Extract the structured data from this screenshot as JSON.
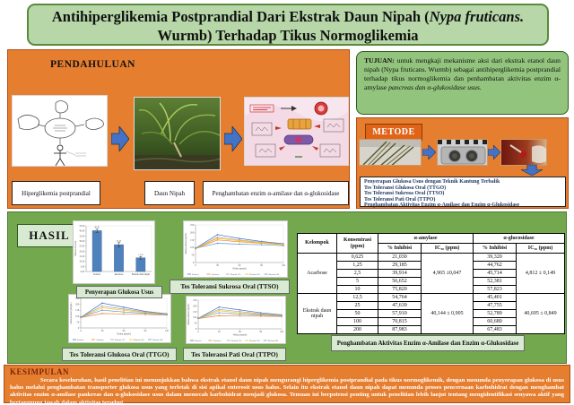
{
  "title": {
    "part1": "Antihiperglikemia Postprandial Dari Ekstrak Daun Nipah (",
    "italic": "Nypa fruticans.",
    "part2": " Wurmb) Terhadap Tikus Normoglikemia"
  },
  "pendahuluan": {
    "heading": "PENDAHULUAN",
    "labels": [
      "Hiperglikemia postprandial",
      "Daun Nipah",
      "Penghambatan enzim α-amilase dan α-glukosidase"
    ]
  },
  "tujuan": {
    "heading": "TUJUAN:",
    "body": " untuk mengkaji mekanisme aksi dari ekstrak etanol daun nipah (Nypa fruticans. Wurmb) sebagai antihiperglikemia postprandial terhadap tikus normoglikemia dan penhambatan aktivitas enzim α-amylase ",
    "body_italic": "pancreas dan α-glukosidase usus."
  },
  "metode": {
    "heading": "METODE",
    "items": [
      "Penyerapan Glukosa Usus dengan Teknik Kantung Terbalik",
      "Tes Toleransi Glukosa Oral (TTGO)",
      "Tes Toleransi Sukrosa Oral (TTSO)",
      "Tes Toleransi Pati Oral (TTPO)",
      "Penghambatan Aktivitas Enzim α-Amilase dan Enzim α-Glukosidase"
    ]
  },
  "hasil": {
    "heading": "HASIL",
    "captions": [
      "Penyerapan Glukosa Usus",
      "Tes Toleransi Sukrosa Oral (TTSO)",
      "Tes Toleransi Glukosa Oral (TTGO)",
      "Tes Toleransi Pati Oral (TTPO)",
      "Penghambatan Aktivitas Enzim α-Amilase dan Enzim α-Glukosidase"
    ]
  },
  "table": {
    "headers": {
      "kelompok": "Kelompok",
      "konsentrasi": "Konsentrasi (ppm)",
      "amylase": "α-amylase",
      "glucosidase": "α-glucosidase",
      "inhibisi": "% Inhibisi",
      "ic50": "IC₅₀ (ppm)",
      "inhibisi2": "% Inhibisi",
      "ic502": "IC₅₀ (ppm)"
    },
    "groups": [
      {
        "name": "Acarbose",
        "ic50_amylase": "4,965 ±0,047",
        "ic50_glucosidase": "4,812 ± 0,149",
        "rows": [
          [
            "0,625",
            "21,030",
            "39,320"
          ],
          [
            "1,25",
            "29,185",
            "44,762"
          ],
          [
            "2,5",
            "39,914",
            "45,714"
          ],
          [
            "5",
            "56,652",
            "52,381"
          ],
          [
            "10",
            "75,820",
            "57,823"
          ]
        ]
      },
      {
        "name": "Ekstrak daun nipah",
        "ic50_amylase": "40,144 ± 0,905",
        "ic50_glucosidase": "40,695 ± 0,849",
        "rows": [
          [
            "12,5",
            "54,764",
            "45,401"
          ],
          [
            "25",
            "47,639",
            "47,755"
          ],
          [
            "50",
            "57,910",
            "52,789"
          ],
          [
            "100",
            "70,815",
            "60,680"
          ],
          [
            "200",
            "87,983",
            "67,483"
          ]
        ]
      }
    ]
  },
  "kesimpulan": {
    "heading": "KESIMPULAN",
    "body": "Secara keseluruhan, hasil penelitian ini menunjukkan bahwa ekstrak etanol daun nipah mengurangi hiperglikemia postprandial pada tikus normoglikemik, dengan menunda penyerapan glukosa di usus halus melalui penghambatan transporter glukosa usus yang terletak di sisi apikal enterosit usus halus. Selain itu ekstrak etanol daun nipah dapat menunda proses pencernaan karbohidrat dengan menghambat aktivitas enzim α-amilase pankreas dan α-glukosidase usus dalam memecah karbohidrat menjadi glukosa. Temuan ini berpotensi penting untuk penelitian lebih lanjut tentang mengidentifikasi senyawa aktif yang bertanggung jawab dalam aktivitas tersebut."
  },
  "chart_data": [
    {
      "type": "bar",
      "title": "Penyerapan Glukosa Usus",
      "categories": [
        "Kontrol",
        "Akarbose",
        "Ekstrak daun nipah"
      ],
      "values": [
        40.2,
        26.4,
        13.5
      ],
      "errors": [
        1.6,
        2.0,
        1.3
      ],
      "xlabel": "",
      "ylabel": "Glukosa terserap",
      "ylim": [
        0,
        45
      ],
      "note": "values estimated from bar heights; tick text illegible at source resolution"
    },
    {
      "type": "line",
      "title": "Tes Toleransi Sukrosa Oral (TTSO)",
      "x": [
        0,
        30,
        60,
        90,
        120
      ],
      "xlabel": "Waktu (menit)",
      "ylabel": "Glukosa darah (mg/dL)",
      "ylim": [
        0,
        250
      ],
      "legend_position": "bottom",
      "series": [
        {
          "name": "Kontrol",
          "values": [
            95,
            185,
            160,
            140,
            125
          ]
        },
        {
          "name": "Akarbose",
          "values": [
            92,
            150,
            138,
            128,
            118
          ]
        },
        {
          "name": "Ekstrak 125",
          "values": [
            94,
            168,
            150,
            135,
            122
          ]
        },
        {
          "name": "Ekstrak 250",
          "values": [
            93,
            160,
            145,
            130,
            120
          ]
        },
        {
          "name": "Ekstrak 500",
          "values": [
            95,
            128,
            122,
            118,
            112
          ]
        }
      ],
      "note": "values estimated; legend text illegible at source resolution"
    },
    {
      "type": "line",
      "title": "Tes Toleransi Glukosa Oral (TTGO)",
      "x": [
        0,
        30,
        60,
        90,
        120
      ],
      "xlabel": "Waktu (menit)",
      "ylabel": "Glukosa darah (mg/dL)",
      "ylim": [
        0,
        250
      ],
      "legend_position": "bottom",
      "series": [
        {
          "name": "Kontrol",
          "values": [
            90,
            210,
            175,
            140,
            120
          ]
        },
        {
          "name": "Akarbose",
          "values": [
            88,
            122,
            118,
            114,
            110
          ]
        },
        {
          "name": "Ekstrak 125",
          "values": [
            92,
            185,
            160,
            135,
            118
          ]
        },
        {
          "name": "Ekstrak 250",
          "values": [
            90,
            170,
            150,
            130,
            115
          ]
        },
        {
          "name": "Ekstrak 500",
          "values": [
            91,
            150,
            135,
            124,
            112
          ]
        }
      ],
      "note": "values estimated; legend text illegible at source resolution"
    },
    {
      "type": "line",
      "title": "Tes Toleransi Pati Oral (TTPO)",
      "x": [
        0,
        30,
        60,
        90,
        120
      ],
      "xlabel": "Waktu (menit)",
      "ylabel": "Glukosa darah (mg/dL)",
      "ylim": [
        0,
        250
      ],
      "legend_position": "bottom",
      "series": [
        {
          "name": "Kontrol",
          "values": [
            92,
            190,
            165,
            140,
            122
          ]
        },
        {
          "name": "Akarbose",
          "values": [
            90,
            115,
            112,
            110,
            108
          ]
        },
        {
          "name": "Ekstrak 125",
          "values": [
            93,
            170,
            150,
            132,
            118
          ]
        },
        {
          "name": "Ekstrak 250",
          "values": [
            91,
            158,
            140,
            126,
            114
          ]
        },
        {
          "name": "Ekstrak 500",
          "values": [
            92,
            140,
            128,
            120,
            110
          ]
        }
      ],
      "note": "values estimated; legend text illegible at source resolution"
    }
  ],
  "colors": {
    "accent_orange": "#E67E30",
    "panel_green": "#73A84E",
    "light_green": "#D9EAD3",
    "title_green": "#B7D7A8",
    "tujuan_green": "#93C47D",
    "arrow_blue": "#4472C4",
    "navy_text": "#1F3864",
    "kesimpulan_heading": "#7F2408",
    "bar_fill": "#4F81BD",
    "series": [
      "#4472C4",
      "#ED7D31",
      "#A5A5A5",
      "#FFC000",
      "#5B9BD5"
    ]
  }
}
